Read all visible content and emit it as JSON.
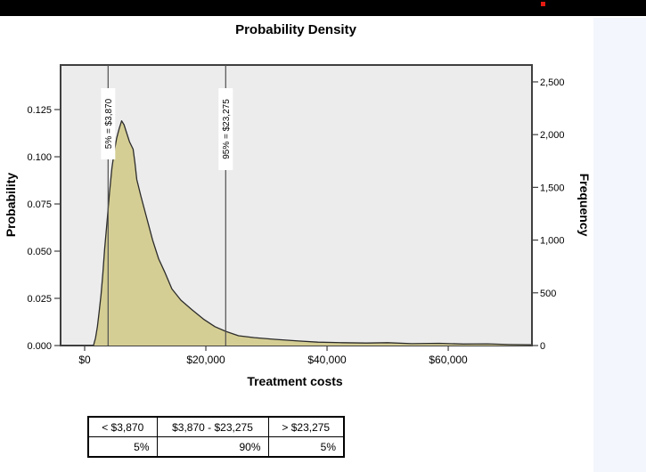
{
  "top_bar": {
    "bar_color": "#000000",
    "indicator_color": "#e31b12"
  },
  "side_panel": {
    "color": "#f3f6fc"
  },
  "chart_data": {
    "type": "area",
    "title": "Probability Density",
    "xlabel": "Treatment costs",
    "ylabel_left": "Probability",
    "ylabel_right": "Frequency",
    "grid": false,
    "legend": "none",
    "xlim": [
      -3970,
      73814
    ],
    "ylim_left": [
      0,
      0.1486
    ],
    "ylim_right": [
      0,
      2660
    ],
    "x_ticks": [
      {
        "value": 0,
        "label": "$0"
      },
      {
        "value": 20000,
        "label": "$20,000"
      },
      {
        "value": 40000,
        "label": "$40,000"
      },
      {
        "value": 60000,
        "label": "$60,000"
      }
    ],
    "y_left_ticks": [
      {
        "value": 0.0,
        "label": "0.000"
      },
      {
        "value": 0.025,
        "label": "0.025"
      },
      {
        "value": 0.05,
        "label": "0.050"
      },
      {
        "value": 0.075,
        "label": "0.075"
      },
      {
        "value": 0.1,
        "label": "0.100"
      },
      {
        "value": 0.125,
        "label": "0.125"
      }
    ],
    "y_right_ticks": [
      {
        "value": 0,
        "label": "0"
      },
      {
        "value": 500,
        "label": "500"
      },
      {
        "value": 1000,
        "label": "1,000"
      },
      {
        "value": 1500,
        "label": "1,500"
      },
      {
        "value": 2000,
        "label": "2,000"
      },
      {
        "value": 2500,
        "label": "2,500"
      }
    ],
    "reference_lines": [
      {
        "x": 3870,
        "label": "5% = $3,870"
      },
      {
        "x": 23275,
        "label": "95% = $23,275"
      }
    ],
    "curve": [
      [
        1450,
        0
      ],
      [
        1800,
        0.004
      ],
      [
        2100,
        0.01
      ],
      [
        2400,
        0.018
      ],
      [
        2700,
        0.027
      ],
      [
        3000,
        0.038
      ],
      [
        3300,
        0.051
      ],
      [
        3700,
        0.066
      ],
      [
        4100,
        0.081
      ],
      [
        4500,
        0.094
      ],
      [
        4900,
        0.103
      ],
      [
        5300,
        0.11
      ],
      [
        5700,
        0.115
      ],
      [
        6100,
        0.119
      ],
      [
        6500,
        0.117
      ],
      [
        6900,
        0.113
      ],
      [
        7400,
        0.108
      ],
      [
        8000,
        0.104
      ],
      [
        8300,
        0.097
      ],
      [
        8600,
        0.088
      ],
      [
        9300,
        0.079
      ],
      [
        10300,
        0.067
      ],
      [
        11200,
        0.056
      ],
      [
        12200,
        0.046
      ],
      [
        13200,
        0.039
      ],
      [
        14400,
        0.03
      ],
      [
        15900,
        0.024
      ],
      [
        17700,
        0.019
      ],
      [
        19600,
        0.014
      ],
      [
        21500,
        0.01
      ],
      [
        23300,
        0.0075
      ],
      [
        25400,
        0.0052
      ],
      [
        28000,
        0.0042
      ],
      [
        31300,
        0.0033
      ],
      [
        35300,
        0.0024
      ],
      [
        38500,
        0.0018
      ],
      [
        42500,
        0.0015
      ],
      [
        46500,
        0.0013
      ],
      [
        50000,
        0.0015
      ],
      [
        54000,
        0.001
      ],
      [
        58500,
        0.0012
      ],
      [
        62500,
        0.0008
      ],
      [
        66500,
        0.0009
      ],
      [
        70000,
        0.0005
      ],
      [
        73700,
        0.0004
      ]
    ],
    "colors": {
      "fill": "#d5ce94",
      "stroke": "#2b2b2b",
      "plot_bg": "#ececec",
      "frame": "#3f3f3f",
      "ref_line": "#4f4f4f",
      "ref_label_bg": "#ffffff"
    },
    "percentile_table": {
      "headers": [
        "< $3,870",
        "$3,870 - $23,275",
        "> $23,275"
      ],
      "values": [
        "5%",
        "90%",
        "5%"
      ]
    }
  }
}
